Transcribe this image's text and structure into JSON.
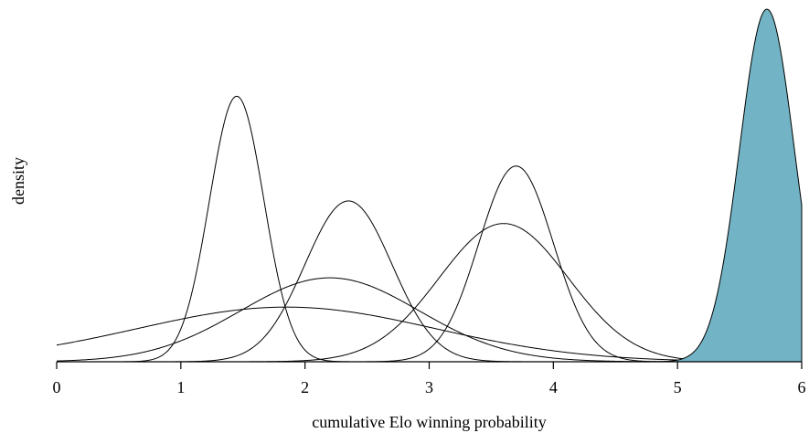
{
  "chart_data": {
    "type": "area",
    "title": "",
    "xlabel": "cumulative Elo winning probability",
    "ylabel": "density",
    "xlim": [
      0,
      6
    ],
    "ylim": [
      0,
      1
    ],
    "x_ticks": [
      0,
      1,
      2,
      3,
      4,
      5,
      6
    ],
    "y_ticks_shown": false,
    "grid": false,
    "legend": "none",
    "highlight_color": "#72b4c5",
    "line_color": "#000000",
    "series": [
      {
        "mean": 1.45,
        "sd": 0.22,
        "peak": 0.753,
        "filled": false
      },
      {
        "mean": 2.35,
        "sd": 0.35,
        "peak": 0.456,
        "filled": false
      },
      {
        "mean": 2.2,
        "sd": 0.72,
        "peak": 0.238,
        "filled": false
      },
      {
        "mean": 1.85,
        "sd": 1.2,
        "peak": 0.155,
        "filled": false
      },
      {
        "mean": 3.6,
        "sd": 0.52,
        "peak": 0.392,
        "filled": false
      },
      {
        "mean": 3.7,
        "sd": 0.3,
        "peak": 0.555,
        "filled": false
      },
      {
        "mean": 5.72,
        "sd": 0.22,
        "peak": 1.0,
        "filled": true
      }
    ]
  }
}
